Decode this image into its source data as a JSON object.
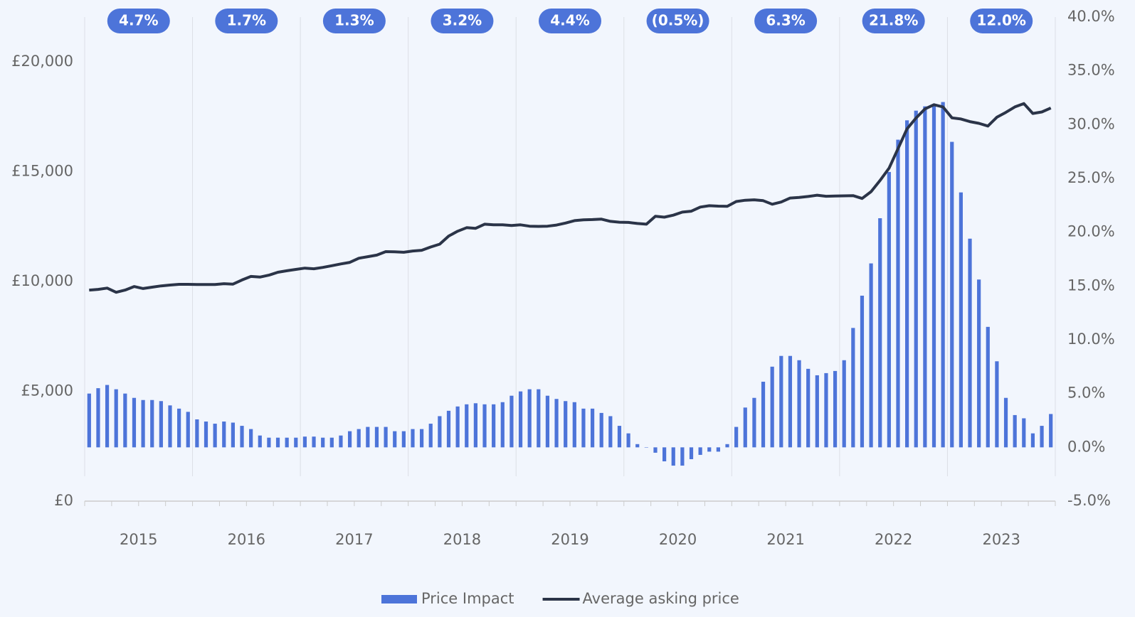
{
  "chart_data": {
    "type": "bar-line",
    "categories": [
      null,
      null,
      null,
      null,
      null,
      "2015",
      null,
      null,
      null,
      null,
      null,
      null,
      null,
      null,
      null,
      null,
      null,
      "2016",
      null,
      null,
      null,
      null,
      null,
      null,
      null,
      null,
      null,
      null,
      null,
      "2017",
      null,
      null,
      null,
      null,
      null,
      null,
      null,
      null,
      null,
      null,
      null,
      "2018",
      null,
      null,
      null,
      null,
      null,
      null,
      null,
      null,
      null,
      null,
      null,
      "2019",
      null,
      null,
      null,
      null,
      null,
      null,
      null,
      null,
      null,
      null,
      null,
      "2020",
      null,
      null,
      null,
      null,
      null,
      null,
      null,
      null,
      null,
      null,
      null,
      "2021",
      null,
      null,
      null,
      null,
      null,
      null,
      null,
      null,
      null,
      null,
      null,
      "2022",
      null,
      null,
      null,
      null,
      null,
      null,
      null,
      null,
      null,
      null,
      null,
      "2023",
      null,
      null,
      null,
      null,
      null,
      null
    ],
    "series": [
      {
        "name": "Price Impact",
        "color": "#4d74d9",
        "axis": "y2",
        "kind": "bar",
        "values": [
          5.0,
          5.5,
          5.8,
          5.4,
          5.0,
          4.6,
          4.4,
          4.4,
          4.3,
          3.9,
          3.6,
          3.3,
          2.6,
          2.4,
          2.2,
          2.4,
          2.3,
          2.0,
          1.7,
          1.1,
          0.9,
          0.9,
          0.9,
          0.9,
          1.0,
          1.0,
          0.9,
          0.9,
          1.1,
          1.5,
          1.7,
          1.9,
          1.9,
          1.9,
          1.5,
          1.5,
          1.7,
          1.7,
          2.2,
          2.9,
          3.4,
          3.8,
          4.0,
          4.1,
          4.0,
          4.0,
          4.2,
          4.8,
          5.2,
          5.4,
          5.4,
          4.8,
          4.5,
          4.3,
          4.2,
          3.6,
          3.6,
          3.2,
          2.9,
          2.0,
          1.3,
          0.3,
          0.0,
          -0.5,
          -1.3,
          -1.7,
          -1.7,
          -1.1,
          -0.7,
          -0.4,
          -0.4,
          0.3,
          1.9,
          3.7,
          4.6,
          6.1,
          7.5,
          8.5,
          8.5,
          8.1,
          7.3,
          6.7,
          6.9,
          7.1,
          8.1,
          11.1,
          14.1,
          17.1,
          21.3,
          25.6,
          28.6,
          30.4,
          31.3,
          31.7,
          31.9,
          32.1,
          28.4,
          23.7,
          19.4,
          15.6,
          11.2,
          8.0,
          4.6,
          3.0,
          2.7,
          1.3,
          2.0,
          3.1
        ]
      },
      {
        "name": "Average asking price",
        "color": "#2b3448",
        "axis": "y",
        "kind": "line",
        "values": [
          9610,
          9640,
          9700,
          9510,
          9610,
          9770,
          9680,
          9740,
          9800,
          9840,
          9870,
          9870,
          9860,
          9860,
          9860,
          9900,
          9880,
          10070,
          10230,
          10200,
          10290,
          10420,
          10490,
          10550,
          10610,
          10580,
          10640,
          10720,
          10800,
          10870,
          11060,
          11130,
          11200,
          11360,
          11350,
          11330,
          11390,
          11420,
          11570,
          11700,
          12070,
          12290,
          12450,
          12420,
          12610,
          12580,
          12580,
          12550,
          12580,
          12520,
          12510,
          12520,
          12570,
          12660,
          12770,
          12810,
          12820,
          12840,
          12740,
          12700,
          12690,
          12640,
          12610,
          12970,
          12930,
          13020,
          13160,
          13200,
          13390,
          13450,
          13430,
          13420,
          13640,
          13700,
          13720,
          13680,
          13520,
          13620,
          13800,
          13830,
          13870,
          13930,
          13880,
          13890,
          13900,
          13910,
          13780,
          14090,
          14600,
          15160,
          16050,
          16950,
          17440,
          17860,
          18050,
          17950,
          17450,
          17400,
          17280,
          17200,
          17080,
          17480,
          17700,
          17950,
          18100,
          17650,
          17720,
          17900
        ]
      }
    ],
    "annual_changes": {
      "values": [
        4.7,
        1.7,
        1.3,
        3.2,
        4.4,
        -0.5,
        6.3,
        21.8,
        12.0
      ],
      "value_labels": [
        "4.7%",
        "1.7%",
        "1.3%",
        "3.2%",
        "4.4%",
        "(0.5%)",
        "6.3%",
        "21.8%",
        "12.0%"
      ]
    },
    "ylim": [
      0,
      22040
    ],
    "yticks": [
      {
        "value": 0,
        "label": "£0"
      },
      {
        "value": 5000,
        "label": "£5,000"
      },
      {
        "value": 10000,
        "label": "£10,000"
      },
      {
        "value": 15000,
        "label": "£15,000"
      },
      {
        "value": 20000,
        "label": "£20,000"
      }
    ],
    "y2lim": [
      -5,
      40
    ],
    "y2ticks": [
      {
        "value": -5,
        "label": "-5.0%"
      },
      {
        "value": 0,
        "label": "0.0%"
      },
      {
        "value": 5,
        "label": "5.0%"
      },
      {
        "value": 10,
        "label": "10.0%"
      },
      {
        "value": 15,
        "label": "15.0%"
      },
      {
        "value": 20,
        "label": "20.0%"
      },
      {
        "value": 25,
        "label": "25.0%"
      },
      {
        "value": 30,
        "label": "30.0%"
      },
      {
        "value": 35,
        "label": "35.0%"
      },
      {
        "value": 40,
        "label": "40.0%"
      }
    ],
    "legend": "bottom"
  }
}
